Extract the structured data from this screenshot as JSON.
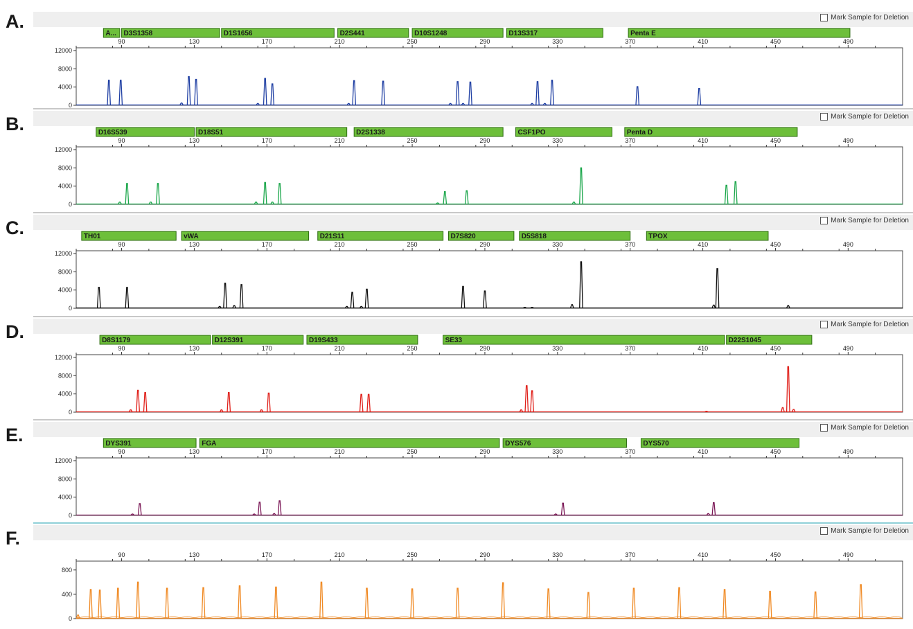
{
  "mark_label": "Mark Sample for Deletion",
  "x_ticks": [
    90,
    130,
    170,
    210,
    250,
    290,
    330,
    370,
    410,
    450,
    490
  ],
  "chart_data": [
    {
      "panel": "A.",
      "type": "line",
      "color": "#1f3fa3",
      "xlim": [
        65,
        520
      ],
      "ylim": [
        0,
        12000
      ],
      "y_ticks": [
        0,
        4000,
        8000,
        12000
      ],
      "markers": [
        {
          "name": "A...",
          "start": 80,
          "end": 89
        },
        {
          "name": "D3S1358",
          "start": 90,
          "end": 144
        },
        {
          "name": "D1S1656",
          "start": 145,
          "end": 207
        },
        {
          "name": "D2S441",
          "start": 209,
          "end": 248
        },
        {
          "name": "D10S1248",
          "start": 250,
          "end": 300
        },
        {
          "name": "D13S317",
          "start": 302,
          "end": 355
        },
        {
          "name": "Penta E",
          "start": 369,
          "end": 491
        }
      ],
      "peaks": [
        {
          "x": 83,
          "h": 5500
        },
        {
          "x": 89.5,
          "h": 5500
        },
        {
          "x": 123,
          "h": 500
        },
        {
          "x": 127,
          "h": 6300
        },
        {
          "x": 131,
          "h": 5700
        },
        {
          "x": 165,
          "h": 400
        },
        {
          "x": 169,
          "h": 5900
        },
        {
          "x": 173,
          "h": 4700
        },
        {
          "x": 215,
          "h": 400
        },
        {
          "x": 218,
          "h": 5400
        },
        {
          "x": 234,
          "h": 5300
        },
        {
          "x": 271,
          "h": 400
        },
        {
          "x": 275,
          "h": 5200
        },
        {
          "x": 278,
          "h": 400
        },
        {
          "x": 282,
          "h": 5100
        },
        {
          "x": 316,
          "h": 400
        },
        {
          "x": 319,
          "h": 5200
        },
        {
          "x": 323,
          "h": 400
        },
        {
          "x": 327,
          "h": 5500
        },
        {
          "x": 374,
          "h": 4100
        },
        {
          "x": 408,
          "h": 3700
        }
      ]
    },
    {
      "panel": "B.",
      "type": "line",
      "color": "#1aa64a",
      "xlim": [
        65,
        520
      ],
      "ylim": [
        0,
        12000
      ],
      "y_ticks": [
        0,
        4000,
        8000,
        12000
      ],
      "markers": [
        {
          "name": "D16S539",
          "start": 76,
          "end": 130
        },
        {
          "name": "D18S51",
          "start": 131,
          "end": 214
        },
        {
          "name": "D2S1338",
          "start": 218,
          "end": 300
        },
        {
          "name": "CSF1PO",
          "start": 307,
          "end": 360
        },
        {
          "name": "Penta D",
          "start": 367,
          "end": 462
        }
      ],
      "peaks": [
        {
          "x": 89,
          "h": 500
        },
        {
          "x": 93,
          "h": 4600
        },
        {
          "x": 106,
          "h": 500
        },
        {
          "x": 110,
          "h": 4600
        },
        {
          "x": 164,
          "h": 500
        },
        {
          "x": 169,
          "h": 4800
        },
        {
          "x": 173,
          "h": 500
        },
        {
          "x": 177,
          "h": 4600
        },
        {
          "x": 264,
          "h": 300
        },
        {
          "x": 268,
          "h": 2800
        },
        {
          "x": 280,
          "h": 3000
        },
        {
          "x": 339,
          "h": 500
        },
        {
          "x": 343,
          "h": 8000
        },
        {
          "x": 423,
          "h": 4200
        },
        {
          "x": 428,
          "h": 5000
        }
      ]
    },
    {
      "panel": "C.",
      "type": "line",
      "color": "#111111",
      "xlim": [
        65,
        520
      ],
      "ylim": [
        0,
        12000
      ],
      "y_ticks": [
        0,
        4000,
        8000,
        12000
      ],
      "markers": [
        {
          "name": "TH01",
          "start": 68,
          "end": 120
        },
        {
          "name": "vWA",
          "start": 123,
          "end": 193
        },
        {
          "name": "D21S11",
          "start": 198,
          "end": 267
        },
        {
          "name": "D7S820",
          "start": 270,
          "end": 306
        },
        {
          "name": "D5S818",
          "start": 309,
          "end": 370
        },
        {
          "name": "TPOX",
          "start": 379,
          "end": 446
        }
      ],
      "peaks": [
        {
          "x": 93,
          "h": 4600
        },
        {
          "x": 77.5,
          "h": 4600
        },
        {
          "x": 144,
          "h": 400
        },
        {
          "x": 147,
          "h": 5500
        },
        {
          "x": 152,
          "h": 600
        },
        {
          "x": 156,
          "h": 5200
        },
        {
          "x": 214,
          "h": 400
        },
        {
          "x": 217,
          "h": 3500
        },
        {
          "x": 222,
          "h": 400
        },
        {
          "x": 225,
          "h": 4200
        },
        {
          "x": 278,
          "h": 4800
        },
        {
          "x": 290,
          "h": 3800
        },
        {
          "x": 312,
          "h": 200
        },
        {
          "x": 316,
          "h": 200
        },
        {
          "x": 338,
          "h": 800
        },
        {
          "x": 343,
          "h": 10200
        },
        {
          "x": 416,
          "h": 700
        },
        {
          "x": 418,
          "h": 8700
        },
        {
          "x": 457,
          "h": 600
        }
      ]
    },
    {
      "panel": "D.",
      "type": "line",
      "color": "#e0201a",
      "xlim": [
        65,
        520
      ],
      "ylim": [
        0,
        12000
      ],
      "y_ticks": [
        0,
        4000,
        8000,
        12000
      ],
      "markers": [
        {
          "name": "D8S1179",
          "start": 78,
          "end": 139
        },
        {
          "name": "D12S391",
          "start": 140,
          "end": 190
        },
        {
          "name": "D19S433",
          "start": 192,
          "end": 253
        },
        {
          "name": "SE33",
          "start": 267,
          "end": 422
        },
        {
          "name": "D22S1045",
          "start": 423,
          "end": 470
        }
      ],
      "peaks": [
        {
          "x": 95,
          "h": 500
        },
        {
          "x": 99,
          "h": 4800
        },
        {
          "x": 103,
          "h": 4300
        },
        {
          "x": 145,
          "h": 500
        },
        {
          "x": 149,
          "h": 4300
        },
        {
          "x": 167,
          "h": 500
        },
        {
          "x": 171,
          "h": 4200
        },
        {
          "x": 222,
          "h": 3900
        },
        {
          "x": 226,
          "h": 3900
        },
        {
          "x": 310,
          "h": 500
        },
        {
          "x": 313,
          "h": 5800
        },
        {
          "x": 316,
          "h": 4700
        },
        {
          "x": 412,
          "h": 200
        },
        {
          "x": 454,
          "h": 1000
        },
        {
          "x": 457,
          "h": 10000
        },
        {
          "x": 460,
          "h": 600
        }
      ]
    },
    {
      "panel": "E.",
      "type": "line",
      "color": "#7a1655",
      "xlim": [
        65,
        520
      ],
      "ylim": [
        0,
        12000
      ],
      "y_ticks": [
        0,
        4000,
        8000,
        12000
      ],
      "markers": [
        {
          "name": "DYS391",
          "start": 80,
          "end": 131
        },
        {
          "name": "FGA",
          "start": 133,
          "end": 298
        },
        {
          "name": "DYS576",
          "start": 300,
          "end": 368
        },
        {
          "name": "DYS570",
          "start": 376,
          "end": 463
        }
      ],
      "peaks": [
        {
          "x": 96,
          "h": 300
        },
        {
          "x": 100,
          "h": 2600
        },
        {
          "x": 163,
          "h": 300
        },
        {
          "x": 166,
          "h": 2900
        },
        {
          "x": 174,
          "h": 400
        },
        {
          "x": 177,
          "h": 3200
        },
        {
          "x": 329,
          "h": 300
        },
        {
          "x": 333,
          "h": 2700
        },
        {
          "x": 413,
          "h": 400
        },
        {
          "x": 416,
          "h": 2800
        }
      ]
    },
    {
      "panel": "F.",
      "type": "line",
      "color": "#f08a24",
      "xlim": [
        65,
        520
      ],
      "ylim": [
        0,
        900
      ],
      "y_ticks": [
        0,
        400,
        800
      ],
      "markers": [],
      "peaks": [
        {
          "x": 66,
          "h": 60
        },
        {
          "x": 73,
          "h": 480
        },
        {
          "x": 78,
          "h": 470
        },
        {
          "x": 88,
          "h": 500
        },
        {
          "x": 99,
          "h": 600
        },
        {
          "x": 115,
          "h": 500
        },
        {
          "x": 135,
          "h": 510
        },
        {
          "x": 155,
          "h": 540
        },
        {
          "x": 175,
          "h": 520
        },
        {
          "x": 200,
          "h": 600
        },
        {
          "x": 225,
          "h": 500
        },
        {
          "x": 250,
          "h": 490
        },
        {
          "x": 275,
          "h": 500
        },
        {
          "x": 300,
          "h": 590
        },
        {
          "x": 325,
          "h": 490
        },
        {
          "x": 347,
          "h": 430
        },
        {
          "x": 372,
          "h": 500
        },
        {
          "x": 397,
          "h": 510
        },
        {
          "x": 422,
          "h": 480
        },
        {
          "x": 447,
          "h": 450
        },
        {
          "x": 472,
          "h": 440
        },
        {
          "x": 497,
          "h": 560
        }
      ]
    }
  ]
}
